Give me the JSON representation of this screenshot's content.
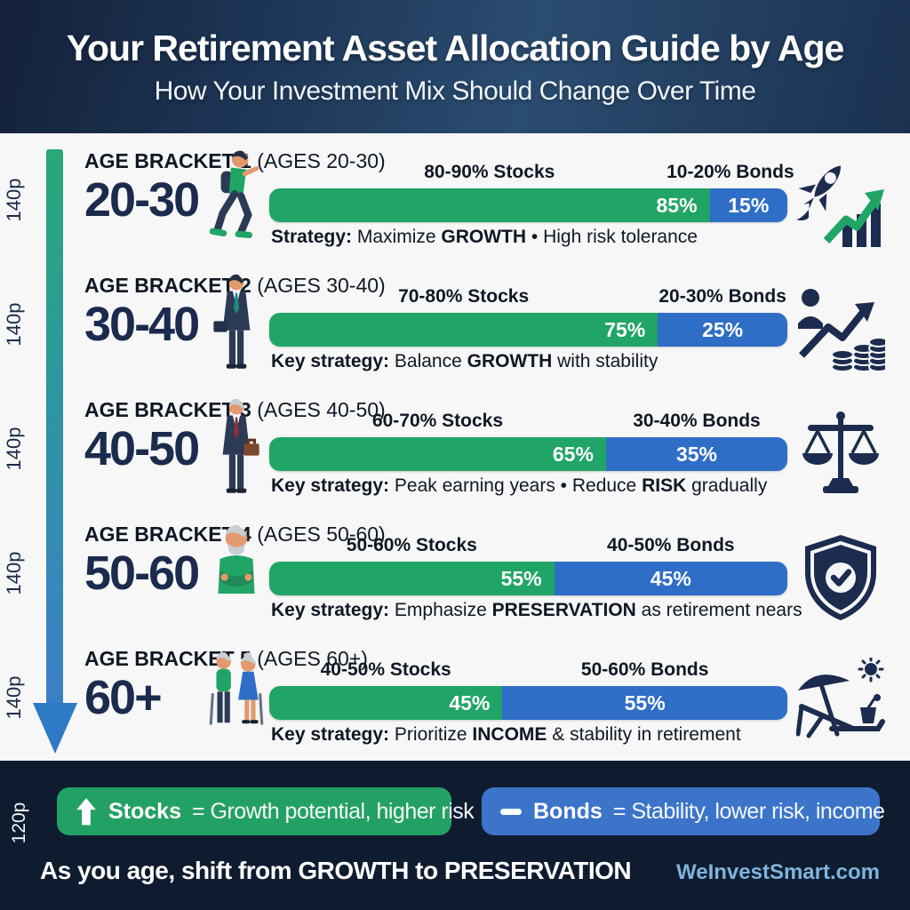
{
  "header": {
    "title": "Your Retirement Asset Allocation Guide by Age",
    "subtitle": "How Your Investment Mix Should Change Over Time"
  },
  "annotations": {
    "row_height_label": "140p",
    "legend_height_label": "120p"
  },
  "brackets": [
    {
      "label_bold": "AGE BRACKET 1",
      "label_paren": " (AGES 20-30)",
      "age_range": "20-30",
      "stocks_label": "80-90% Stocks",
      "bonds_label": "10-20% Bonds",
      "stocks_pct": 85,
      "bonds_pct": 15,
      "stocks_pct_label": "85%",
      "bonds_pct_label": "15%",
      "strategy_prefix": "Strategy:",
      "strategy_text1": " Maximize ",
      "strategy_keyword": "GROWTH",
      "strategy_text2": " • High risk tolerance",
      "person_icon": "young-walker-icon",
      "side_icon": "rocket-growth-icon"
    },
    {
      "label_bold": "AGE BRACKET 2",
      "label_paren": " (AGES 30-40)",
      "age_range": "30-40",
      "stocks_label": "70-80% Stocks",
      "bonds_label": "20-30% Bonds",
      "stocks_pct": 75,
      "bonds_pct": 25,
      "stocks_pct_label": "75%",
      "bonds_pct_label": "25%",
      "strategy_prefix": "Key strategy:",
      "strategy_text1": " Balance ",
      "strategy_keyword": "GROWTH",
      "strategy_text2": " with stability",
      "person_icon": "businessman-icon",
      "side_icon": "investor-coins-icon"
    },
    {
      "label_bold": "AGE BRACKET 3",
      "label_paren": " (AGES 40-50)",
      "age_range": "40-50",
      "stocks_label": "60-70% Stocks",
      "bonds_label": "30-40% Bonds",
      "stocks_pct": 65,
      "bonds_pct": 35,
      "stocks_pct_label": "65%",
      "bonds_pct_label": "35%",
      "strategy_prefix": "Key strategy:",
      "strategy_text1": " Peak earning years • Reduce ",
      "strategy_keyword": "RISK",
      "strategy_text2": " gradually",
      "person_icon": "older-businessman-icon",
      "side_icon": "balance-scale-icon"
    },
    {
      "label_bold": "AGE BRACKET 4",
      "label_paren": " (AGES 50-60)",
      "age_range": "50-60",
      "stocks_label": "50-60% Stocks",
      "bonds_label": "40-50% Bonds",
      "stocks_pct": 55,
      "bonds_pct": 45,
      "stocks_pct_label": "55%",
      "bonds_pct_label": "45%",
      "strategy_prefix": "Key strategy:",
      "strategy_text1": " Emphasize ",
      "strategy_keyword": "PRESERVATION",
      "strategy_text2": " as retirement nears",
      "person_icon": "senior-crossed-arms-icon",
      "side_icon": "shield-check-icon"
    },
    {
      "label_bold": "AGE BRACKET 5",
      "label_paren": " (AGES 60+)",
      "age_range": "60+",
      "stocks_label": "40-50% Stocks",
      "bonds_label": "50-60% Bonds",
      "stocks_pct": 45,
      "bonds_pct": 55,
      "stocks_pct_label": "45%",
      "bonds_pct_label": "55%",
      "strategy_prefix": "Key strategy:",
      "strategy_text1": " Prioritize ",
      "strategy_keyword": "INCOME",
      "strategy_text2": " & stability in retirement",
      "person_icon": "elderly-couple-icon",
      "side_icon": "beach-retirement-icon"
    }
  ],
  "legend": {
    "stocks": {
      "icon": "up-arrow-icon",
      "term": "Stocks",
      "definition": "= Growth potential, higher risk"
    },
    "bonds": {
      "icon": "dash-icon",
      "term": "Bonds",
      "definition": "= Stability, lower risk, income"
    }
  },
  "footer": {
    "tagline": "As you age, shift from GROWTH to PRESERVATION",
    "website": "WeInvestSmart.com"
  },
  "colors": {
    "stocks_green": "#21a566",
    "bonds_blue": "#2f6ec6",
    "navy_text": "#1b2b4e",
    "header_bg": "#1d3657",
    "bottom_bg": "#0f1c30",
    "website_link": "#7fb3dc",
    "legend_green": "#23a164",
    "legend_blue": "#3b74c9"
  },
  "chart_data": {
    "type": "bar",
    "subtype": "horizontal-stacked",
    "title": "Your Retirement Asset Allocation Guide by Age",
    "subtitle": "How Your Investment Mix Should Change Over Time",
    "categories": [
      "20-30",
      "30-40",
      "40-50",
      "50-60",
      "60+"
    ],
    "series": [
      {
        "name": "Stocks",
        "values": [
          85,
          75,
          65,
          55,
          45
        ],
        "color": "#21a566"
      },
      {
        "name": "Bonds",
        "values": [
          15,
          25,
          35,
          45,
          55
        ],
        "color": "#2f6ec6"
      }
    ],
    "range_labels": {
      "stocks": [
        "80-90% Stocks",
        "70-80% Stocks",
        "60-70% Stocks",
        "50-60% Stocks",
        "40-50% Stocks"
      ],
      "bonds": [
        "10-20% Bonds",
        "20-30% Bonds",
        "30-40% Bonds",
        "40-50% Bonds",
        "50-60% Bonds"
      ]
    },
    "annotations": [
      "Strategy: Maximize GROWTH • High risk tolerance",
      "Key strategy: Balance GROWTH with stability",
      "Key strategy: Peak earning years • Reduce RISK gradually",
      "Key strategy: Emphasize PRESERVATION as retirement nears",
      "Key strategy: Prioritize INCOME & stability in retirement"
    ],
    "xlim": [
      0,
      100
    ],
    "legend_position": "bottom",
    "grid": false
  }
}
